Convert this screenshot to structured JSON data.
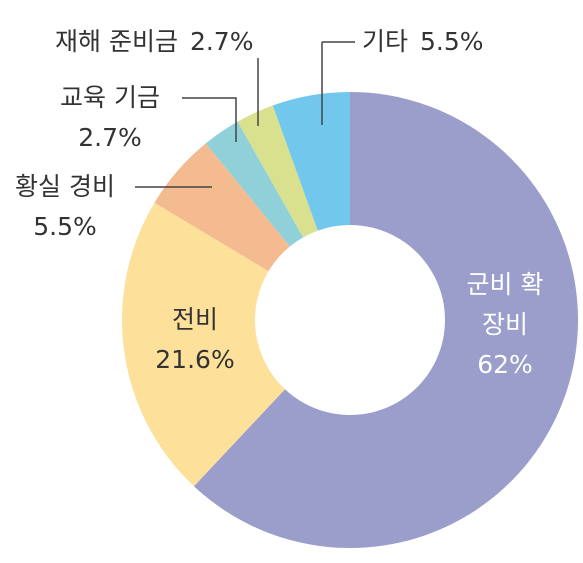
{
  "chart_data": {
    "type": "pie",
    "donut": true,
    "categories": [
      "군비 확장비",
      "전비",
      "황실 경비",
      "교육 기금",
      "재해 준비금",
      "기타"
    ],
    "values": [
      62,
      21.6,
      5.5,
      2.7,
      2.7,
      5.5
    ],
    "value_labels": [
      "62%",
      "21.6%",
      "5.5%",
      "2.7%",
      "2.7%",
      "5.5%"
    ],
    "colors": [
      "#9b9dcb",
      "#fde19b",
      "#f4ba90",
      "#90d0d9",
      "#d9e18e",
      "#72c7ed"
    ]
  }
}
